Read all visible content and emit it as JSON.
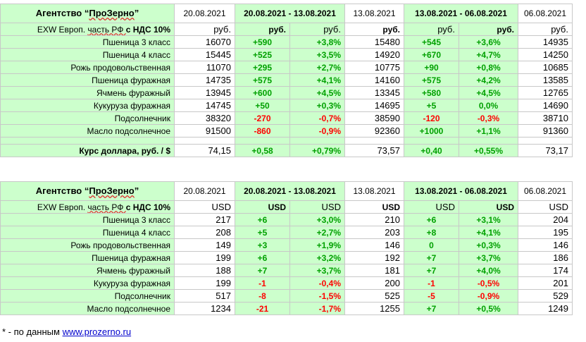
{
  "rub": {
    "header": {
      "agency_prefix": "Агентство “",
      "agency_name": "ПроЗерно",
      "agency_suffix": "”",
      "date1": "20.08.2021",
      "range1": "20.08.2021 - 13.08.2021",
      "date2": "13.08.2021",
      "range2": "13.08.2021 - 06.08.2021",
      "date3": "06.08.2021"
    },
    "units_row": {
      "label_prefix": "EXW Европ. ",
      "label_mid": "часть РФ ",
      "label_suffix": "с НДС 10%",
      "u1": "руб.",
      "u2": "руб.",
      "u3": "руб.",
      "u4": "руб.",
      "u5": "руб.",
      "u6": "руб.",
      "u7": "руб."
    },
    "rows": [
      {
        "name": "Пшеница 3 класс",
        "p1": "16070",
        "d1": "+590",
        "pc1": "+3,8%",
        "p2": "15480",
        "d2": "+545",
        "pc2": "+3,6%",
        "p3": "14935"
      },
      {
        "name": "Пшеница 4 класс",
        "p1": "15445",
        "d1": "+525",
        "pc1": "+3,5%",
        "p2": "14920",
        "d2": "+670",
        "pc2": "+4,7%",
        "p3": "14250"
      },
      {
        "name": "Рожь продовольственная",
        "p1": "11070",
        "d1": "+295",
        "pc1": "+2,7%",
        "p2": "10775",
        "d2": "+90",
        "pc2": "+0,8%",
        "p3": "10685"
      },
      {
        "name": "Пшеница фуражная",
        "p1": "14735",
        "d1": "+575",
        "pc1": "+4,1%",
        "p2": "14160",
        "d2": "+575",
        "pc2": "+4,2%",
        "p3": "13585"
      },
      {
        "name": "Ячмень фуражный",
        "p1": "13945",
        "d1": "+600",
        "pc1": "+4,5%",
        "p2": "13345",
        "d2": "+580",
        "pc2": "+4,5%",
        "p3": "12765"
      },
      {
        "name": "Кукуруза фуражная",
        "p1": "14745",
        "d1": "+50",
        "pc1": "+0,3%",
        "p2": "14695",
        "d2": "+5",
        "pc2": "0,0%",
        "p3": "14690"
      },
      {
        "name": "Подсолнечник",
        "p1": "38320",
        "d1": "-270",
        "pc1": "-0,7%",
        "p2": "38590",
        "d2": "-120",
        "pc2": "-0,3%",
        "p3": "38710"
      },
      {
        "name": "Масло подсолнечное",
        "p1": "91500",
        "d1": "-860",
        "pc1": "-0,9%",
        "p2": "92360",
        "d2": "+1000",
        "pc2": "+1,1%",
        "p3": "91360"
      }
    ],
    "usd_rate": {
      "label": "Курс доллара, руб. / $",
      "p1": "74,15",
      "d1": "+0,58",
      "pc1": "+0,79%",
      "p2": "73,57",
      "d2": "+0,40",
      "pc2": "+0,55%",
      "p3": "73,17"
    }
  },
  "usd": {
    "header": {
      "agency_prefix": "Агентство “",
      "agency_name": "ПроЗерно",
      "agency_suffix": "”",
      "date1": "20.08.2021",
      "range1": "20.08.2021 - 13.08.2021",
      "date2": "13.08.2021",
      "range2": "13.08.2021 - 06.08.2021",
      "date3": "06.08.2021"
    },
    "units_row": {
      "label_prefix": "EXW Европ. ",
      "label_mid": "часть РФ ",
      "label_suffix": "с НДС 10%",
      "u1": "USD",
      "u2": "USD",
      "u3": "USD",
      "u4": "USD",
      "u5": "USD",
      "u6": "USD",
      "u7": "USD"
    },
    "rows": [
      {
        "name": "Пшеница 3 класс",
        "p1": "217",
        "d1": "+6",
        "pc1": "+3,0%",
        "p2": "210",
        "d2": "+6",
        "pc2": "+3,1%",
        "p3": "204"
      },
      {
        "name": "Пшеница 4 класс",
        "p1": "208",
        "d1": "+5",
        "pc1": "+2,7%",
        "p2": "203",
        "d2": "+8",
        "pc2": "+4,1%",
        "p3": "195"
      },
      {
        "name": "Рожь продовольственная",
        "p1": "149",
        "d1": "+3",
        "pc1": "+1,9%",
        "p2": "146",
        "d2": "0",
        "pc2": "+0,3%",
        "p3": "146"
      },
      {
        "name": "Пшеница фуражная",
        "p1": "199",
        "d1": "+6",
        "pc1": "+3,2%",
        "p2": "192",
        "d2": "+7",
        "pc2": "+3,7%",
        "p3": "186"
      },
      {
        "name": "Ячмень фуражный",
        "p1": "188",
        "d1": "+7",
        "pc1": "+3,7%",
        "p2": "181",
        "d2": "+7",
        "pc2": "+4,0%",
        "p3": "174"
      },
      {
        "name": "Кукуруза фуражная",
        "p1": "199",
        "d1": "-1",
        "pc1": "-0,4%",
        "p2": "200",
        "d2": "-1",
        "pc2": "-0,5%",
        "p3": "201"
      },
      {
        "name": "Подсолнечник",
        "p1": "517",
        "d1": "-8",
        "pc1": "-1,5%",
        "p2": "525",
        "d2": "-5",
        "pc2": "-0,9%",
        "p3": "529"
      },
      {
        "name": "Масло подсолнечное",
        "p1": "1234",
        "d1": "-21",
        "pc1": "-1,7%",
        "p2": "1255",
        "d2": "+7",
        "pc2": "+0,5%",
        "p3": "1249"
      }
    ]
  },
  "footnote": {
    "text": "* - по данным ",
    "link": "www.prozerno.ru"
  }
}
